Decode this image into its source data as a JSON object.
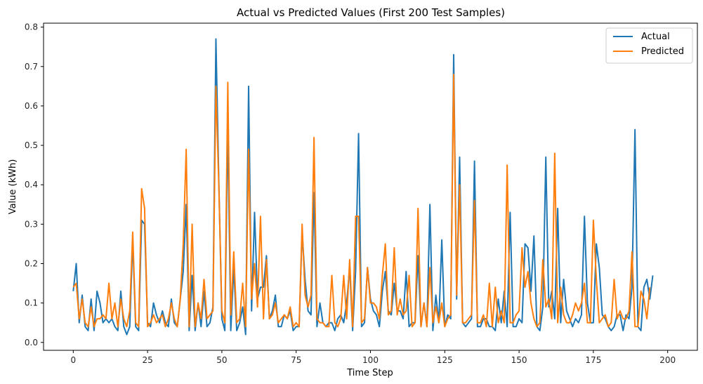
{
  "chart_data": {
    "type": "line",
    "title": "Actual vs Predicted Values (First 200 Test Samples)",
    "xlabel": "Time Step",
    "ylabel": "Value (kWh)",
    "xlim": [
      -10,
      210
    ],
    "ylim": [
      -0.02,
      0.81
    ],
    "xticks": [
      0,
      25,
      50,
      75,
      100,
      125,
      150,
      175,
      200
    ],
    "yticks": [
      0.0,
      0.1,
      0.2,
      0.3,
      0.4,
      0.5,
      0.6,
      0.7,
      0.8
    ],
    "grid": false,
    "legend_position": "top-right",
    "series": [
      {
        "name": "Actual",
        "color": "#1f77b4",
        "values": [
          0.13,
          0.2,
          0.05,
          0.12,
          0.04,
          0.03,
          0.11,
          0.03,
          0.13,
          0.1,
          0.05,
          0.06,
          0.05,
          0.06,
          0.04,
          0.03,
          0.13,
          0.04,
          0.02,
          0.04,
          0.26,
          0.04,
          0.03,
          0.31,
          0.3,
          0.05,
          0.04,
          0.1,
          0.07,
          0.05,
          0.08,
          0.05,
          0.04,
          0.11,
          0.05,
          0.04,
          0.11,
          0.18,
          0.35,
          0.03,
          0.17,
          0.03,
          0.1,
          0.04,
          0.13,
          0.04,
          0.05,
          0.09,
          0.77,
          0.4,
          0.06,
          0.03,
          0.55,
          0.03,
          0.19,
          0.03,
          0.05,
          0.09,
          0.02,
          0.65,
          0.08,
          0.33,
          0.11,
          0.14,
          0.14,
          0.22,
          0.06,
          0.08,
          0.12,
          0.04,
          0.04,
          0.07,
          0.06,
          0.08,
          0.03,
          0.04,
          0.04,
          0.28,
          0.16,
          0.08,
          0.07,
          0.38,
          0.04,
          0.1,
          0.05,
          0.04,
          0.05,
          0.05,
          0.03,
          0.06,
          0.07,
          0.05,
          0.1,
          0.19,
          0.03,
          0.18,
          0.53,
          0.04,
          0.05,
          0.19,
          0.11,
          0.08,
          0.07,
          0.04,
          0.13,
          0.18,
          0.08,
          0.07,
          0.15,
          0.08,
          0.08,
          0.06,
          0.18,
          0.04,
          0.05,
          0.05,
          0.22,
          0.04,
          0.1,
          0.04,
          0.35,
          0.03,
          0.12,
          0.05,
          0.26,
          0.04,
          0.07,
          0.06,
          0.73,
          0.11,
          0.47,
          0.05,
          0.04,
          0.05,
          0.06,
          0.46,
          0.04,
          0.04,
          0.06,
          0.06,
          0.04,
          0.04,
          0.03,
          0.11,
          0.05,
          0.13,
          0.04,
          0.33,
          0.04,
          0.04,
          0.06,
          0.05,
          0.25,
          0.24,
          0.13,
          0.27,
          0.04,
          0.03,
          0.09,
          0.47,
          0.09,
          0.13,
          0.06,
          0.34,
          0.05,
          0.16,
          0.08,
          0.06,
          0.04,
          0.06,
          0.05,
          0.07,
          0.32,
          0.1,
          0.05,
          0.05,
          0.25,
          0.19,
          0.07,
          0.06,
          0.04,
          0.03,
          0.04,
          0.07,
          0.07,
          0.03,
          0.07,
          0.06,
          0.14,
          0.54,
          0.04,
          0.03,
          0.14,
          0.16,
          0.11,
          0.17
        ]
      },
      {
        "name": "Predicted",
        "color": "#ff7f0e",
        "values": [
          0.14,
          0.15,
          0.06,
          0.11,
          0.05,
          0.04,
          0.09,
          0.04,
          0.06,
          0.06,
          0.07,
          0.06,
          0.15,
          0.06,
          0.1,
          0.04,
          0.11,
          0.06,
          0.04,
          0.08,
          0.28,
          0.05,
          0.04,
          0.39,
          0.34,
          0.04,
          0.05,
          0.07,
          0.05,
          0.06,
          0.07,
          0.04,
          0.06,
          0.1,
          0.06,
          0.04,
          0.11,
          0.25,
          0.49,
          0.04,
          0.3,
          0.04,
          0.1,
          0.06,
          0.16,
          0.06,
          0.07,
          0.08,
          0.65,
          0.39,
          0.08,
          0.05,
          0.66,
          0.07,
          0.23,
          0.05,
          0.06,
          0.15,
          0.04,
          0.49,
          0.11,
          0.2,
          0.09,
          0.32,
          0.06,
          0.21,
          0.06,
          0.07,
          0.1,
          0.05,
          0.06,
          0.07,
          0.06,
          0.09,
          0.04,
          0.05,
          0.04,
          0.3,
          0.12,
          0.09,
          0.12,
          0.52,
          0.06,
          0.05,
          0.05,
          0.04,
          0.04,
          0.17,
          0.05,
          0.04,
          0.06,
          0.17,
          0.06,
          0.21,
          0.04,
          0.32,
          0.32,
          0.05,
          0.06,
          0.19,
          0.1,
          0.1,
          0.09,
          0.06,
          0.17,
          0.25,
          0.07,
          0.08,
          0.24,
          0.07,
          0.11,
          0.07,
          0.08,
          0.17,
          0.04,
          0.05,
          0.34,
          0.04,
          0.1,
          0.04,
          0.19,
          0.05,
          0.09,
          0.05,
          0.1,
          0.04,
          0.06,
          0.07,
          0.68,
          0.12,
          0.4,
          0.05,
          0.05,
          0.06,
          0.07,
          0.36,
          0.05,
          0.05,
          0.07,
          0.04,
          0.15,
          0.04,
          0.14,
          0.05,
          0.08,
          0.05,
          0.45,
          0.05,
          0.05,
          0.07,
          0.08,
          0.24,
          0.14,
          0.18,
          0.1,
          0.06,
          0.04,
          0.05,
          0.21,
          0.09,
          0.11,
          0.06,
          0.48,
          0.05,
          0.14,
          0.07,
          0.05,
          0.05,
          0.07,
          0.1,
          0.08,
          0.1,
          0.15,
          0.05,
          0.05,
          0.31,
          0.16,
          0.05,
          0.06,
          0.07,
          0.04,
          0.05,
          0.16,
          0.06,
          0.08,
          0.06,
          0.06,
          0.08,
          0.23,
          0.04,
          0.04,
          0.13,
          0.11,
          0.06,
          0.14
        ]
      }
    ]
  }
}
